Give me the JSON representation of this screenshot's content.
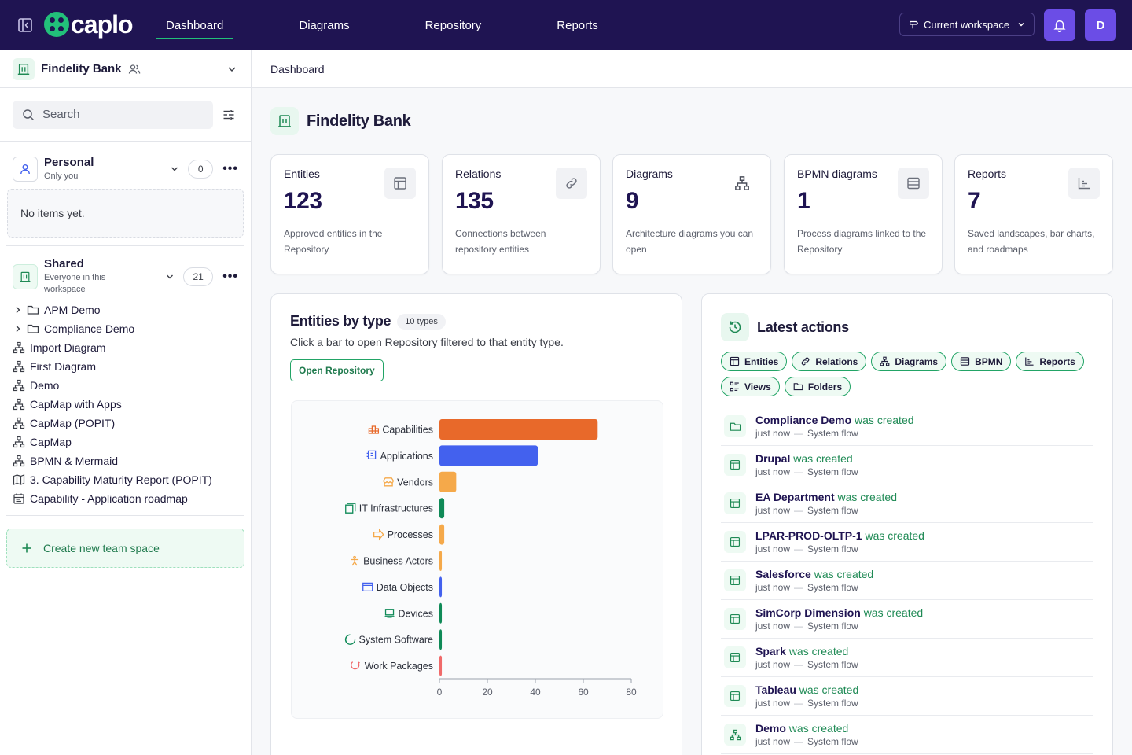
{
  "app": {
    "brand": "caplo",
    "accent": "#22c07a",
    "nav_bg": "#1f1452"
  },
  "nav": {
    "tabs": [
      {
        "label": "Dashboard",
        "active": true
      },
      {
        "label": "Diagrams",
        "active": false
      },
      {
        "label": "Repository",
        "active": false
      },
      {
        "label": "Reports",
        "active": false
      }
    ],
    "workspace_label": "Current workspace",
    "avatar_initial": "D"
  },
  "sidebar": {
    "workspace_name": "Findelity Bank",
    "search_placeholder": "Search",
    "personal": {
      "title": "Personal",
      "subtitle": "Only you",
      "count": "0",
      "empty_text": "No items yet."
    },
    "shared": {
      "title": "Shared",
      "subtitle": "Everyone in this workspace",
      "count": "21",
      "items": [
        {
          "label": "APM Demo",
          "icon": "folder-icon",
          "expandable": true
        },
        {
          "label": "Compliance Demo",
          "icon": "folder-icon",
          "expandable": true
        },
        {
          "label": "Import Diagram",
          "icon": "diagram-icon",
          "expandable": false
        },
        {
          "label": "First Diagram",
          "icon": "diagram-icon",
          "expandable": false
        },
        {
          "label": "Demo",
          "icon": "diagram-icon",
          "expandable": false
        },
        {
          "label": "CapMap with Apps",
          "icon": "diagram-icon",
          "expandable": false
        },
        {
          "label": "CapMap (POPIT)",
          "icon": "diagram-icon",
          "expandable": false
        },
        {
          "label": "CapMap",
          "icon": "diagram-icon",
          "expandable": false
        },
        {
          "label": "BPMN & Mermaid",
          "icon": "diagram-icon",
          "expandable": false
        },
        {
          "label": "3. Capability Maturity Report (POPIT)",
          "icon": "map-icon",
          "expandable": false
        },
        {
          "label": "Capability - Application roadmap",
          "icon": "calendar-icon",
          "expandable": false
        }
      ]
    },
    "create_label": "Create new team space"
  },
  "main": {
    "breadcrumb": "Dashboard",
    "title": "Findelity Bank",
    "stats": [
      {
        "label": "Entities",
        "value": "123",
        "desc": "Approved entities in the Repository",
        "icon": "table-icon"
      },
      {
        "label": "Relations",
        "value": "135",
        "desc": "Connections between repository entities",
        "icon": "link-icon"
      },
      {
        "label": "Diagrams",
        "value": "9",
        "desc": "Architecture diagrams you can open",
        "icon": "diagram-icon"
      },
      {
        "label": "BPMN diagrams",
        "value": "1",
        "desc": "Process diagrams linked to the Repository",
        "icon": "list-icon"
      },
      {
        "label": "Reports",
        "value": "7",
        "desc": "Saved landscapes, bar charts, and roadmaps",
        "icon": "bar-chart-icon"
      }
    ],
    "entities_panel": {
      "title": "Entities by type",
      "chip": "10 types",
      "subtitle": "Click a bar to open Repository filtered to that entity type.",
      "button": "Open Repository"
    },
    "actions_panel": {
      "title": "Latest actions",
      "filters": [
        {
          "label": "Entities",
          "icon": "table-icon"
        },
        {
          "label": "Relations",
          "icon": "link-icon"
        },
        {
          "label": "Diagrams",
          "icon": "diagram-icon"
        },
        {
          "label": "BPMN",
          "icon": "list-icon"
        },
        {
          "label": "Reports",
          "icon": "bar-chart-icon"
        },
        {
          "label": "Views",
          "icon": "views-icon"
        },
        {
          "label": "Folders",
          "icon": "folder-icon"
        }
      ],
      "feed": [
        {
          "name": "Compliance Demo",
          "verb": "was created",
          "time": "just now",
          "actor": "System flow",
          "icon": "folder-icon"
        },
        {
          "name": "Drupal",
          "verb": "was created",
          "time": "just now",
          "actor": "System flow",
          "icon": "table-icon"
        },
        {
          "name": "EA Department",
          "verb": "was created",
          "time": "just now",
          "actor": "System flow",
          "icon": "table-icon"
        },
        {
          "name": "LPAR-PROD-OLTP-1",
          "verb": "was created",
          "time": "just now",
          "actor": "System flow",
          "icon": "table-icon"
        },
        {
          "name": "Salesforce",
          "verb": "was created",
          "time": "just now",
          "actor": "System flow",
          "icon": "table-icon"
        },
        {
          "name": "SimCorp Dimension",
          "verb": "was created",
          "time": "just now",
          "actor": "System flow",
          "icon": "table-icon"
        },
        {
          "name": "Spark",
          "verb": "was created",
          "time": "just now",
          "actor": "System flow",
          "icon": "table-icon"
        },
        {
          "name": "Tableau",
          "verb": "was created",
          "time": "just now",
          "actor": "System flow",
          "icon": "table-icon"
        },
        {
          "name": "Demo",
          "verb": "was created",
          "time": "just now",
          "actor": "System flow",
          "icon": "diagram-icon"
        }
      ]
    }
  },
  "chart_data": {
    "type": "bar",
    "orientation": "horizontal",
    "categories": [
      "Capabilities",
      "Applications",
      "Vendors",
      "IT Infrastructures",
      "Processes",
      "Business Actors",
      "Data Objects",
      "Devices",
      "System Software",
      "Work Packages"
    ],
    "values": [
      66,
      41,
      7,
      2,
      2,
      1,
      1,
      1,
      1,
      1
    ],
    "colors": [
      "#e8692a",
      "#4361ee",
      "#f5a94a",
      "#0f8a57",
      "#f5a94a",
      "#f5a94a",
      "#4361ee",
      "#0f8a57",
      "#0f8a57",
      "#f06a6a"
    ],
    "icons": [
      "capability-icon",
      "application-icon",
      "vendor-icon",
      "infrastructure-icon",
      "process-icon",
      "actor-icon",
      "data-object-icon",
      "device-icon",
      "system-software-icon",
      "work-package-icon"
    ],
    "xlim": [
      0,
      80
    ],
    "xticks": [
      0,
      20,
      40,
      60,
      80
    ],
    "grid": false
  }
}
